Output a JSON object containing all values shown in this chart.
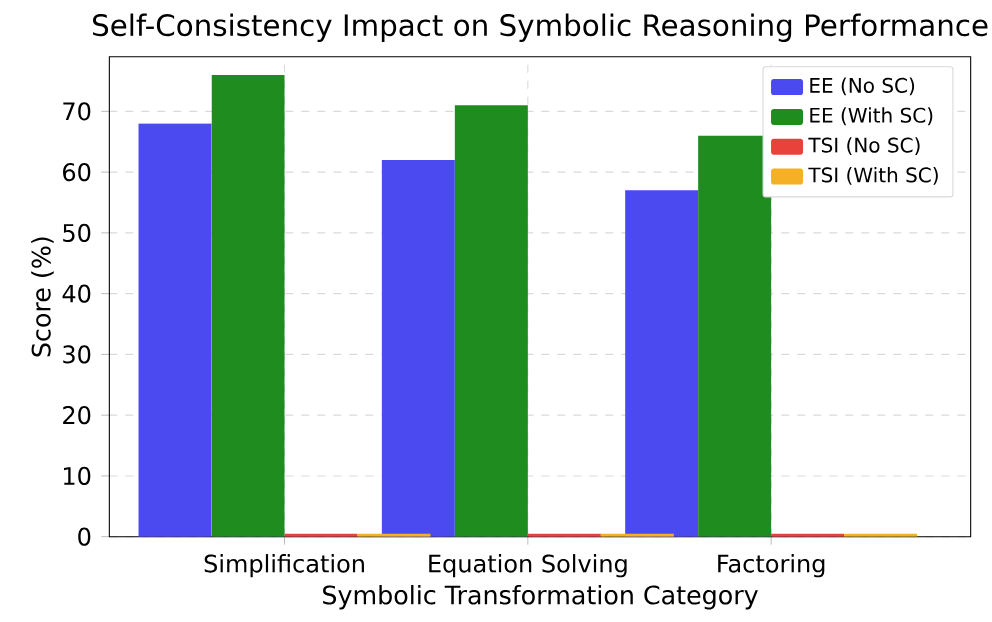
{
  "chart_data": {
    "type": "bar",
    "title": "Self-Consistency Impact on Symbolic Reasoning Performance",
    "xlabel": "Symbolic Transformation Category",
    "ylabel": "Score (%)",
    "categories": [
      "Simplification",
      "Equation Solving",
      "Factoring"
    ],
    "series": [
      {
        "name": "EE (No SC)",
        "color": "#4a4af0",
        "values": [
          68,
          62,
          57
        ]
      },
      {
        "name": "EE (With SC)",
        "color": "#1f8c1f",
        "values": [
          76,
          71,
          66
        ]
      },
      {
        "name": "TSI (No SC)",
        "color": "#e8423a",
        "values": [
          0.5,
          0.5,
          0.5
        ]
      },
      {
        "name": "TSI (With SC)",
        "color": "#f5b025",
        "values": [
          0.5,
          0.5,
          0.5
        ]
      }
    ],
    "ylim": [
      0,
      79
    ],
    "yticks": [
      0,
      10,
      20,
      30,
      40,
      50,
      60,
      70
    ],
    "grid": true,
    "legend": "top right"
  }
}
